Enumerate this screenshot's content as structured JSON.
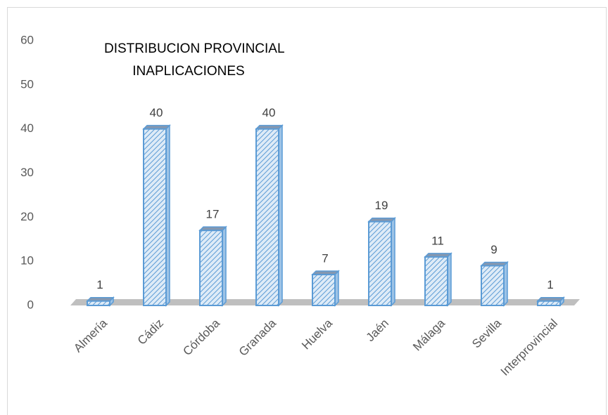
{
  "chart_data": {
    "type": "bar",
    "title": [
      "DISTRIBUCION PROVINCIAL",
      "INAPLICACIONES"
    ],
    "categories": [
      "Almería",
      "Cádiz",
      "Córdoba",
      "Granada",
      "Huelva",
      "Jaén",
      "Málaga",
      "Sevilla",
      "Interprovincial"
    ],
    "values": [
      1,
      40,
      17,
      40,
      7,
      19,
      11,
      9,
      1
    ],
    "color": "#5b9bd5",
    "ylim": [
      0,
      60
    ],
    "yticks": [
      0,
      10,
      20,
      30,
      40,
      50,
      60
    ],
    "grid": false
  }
}
